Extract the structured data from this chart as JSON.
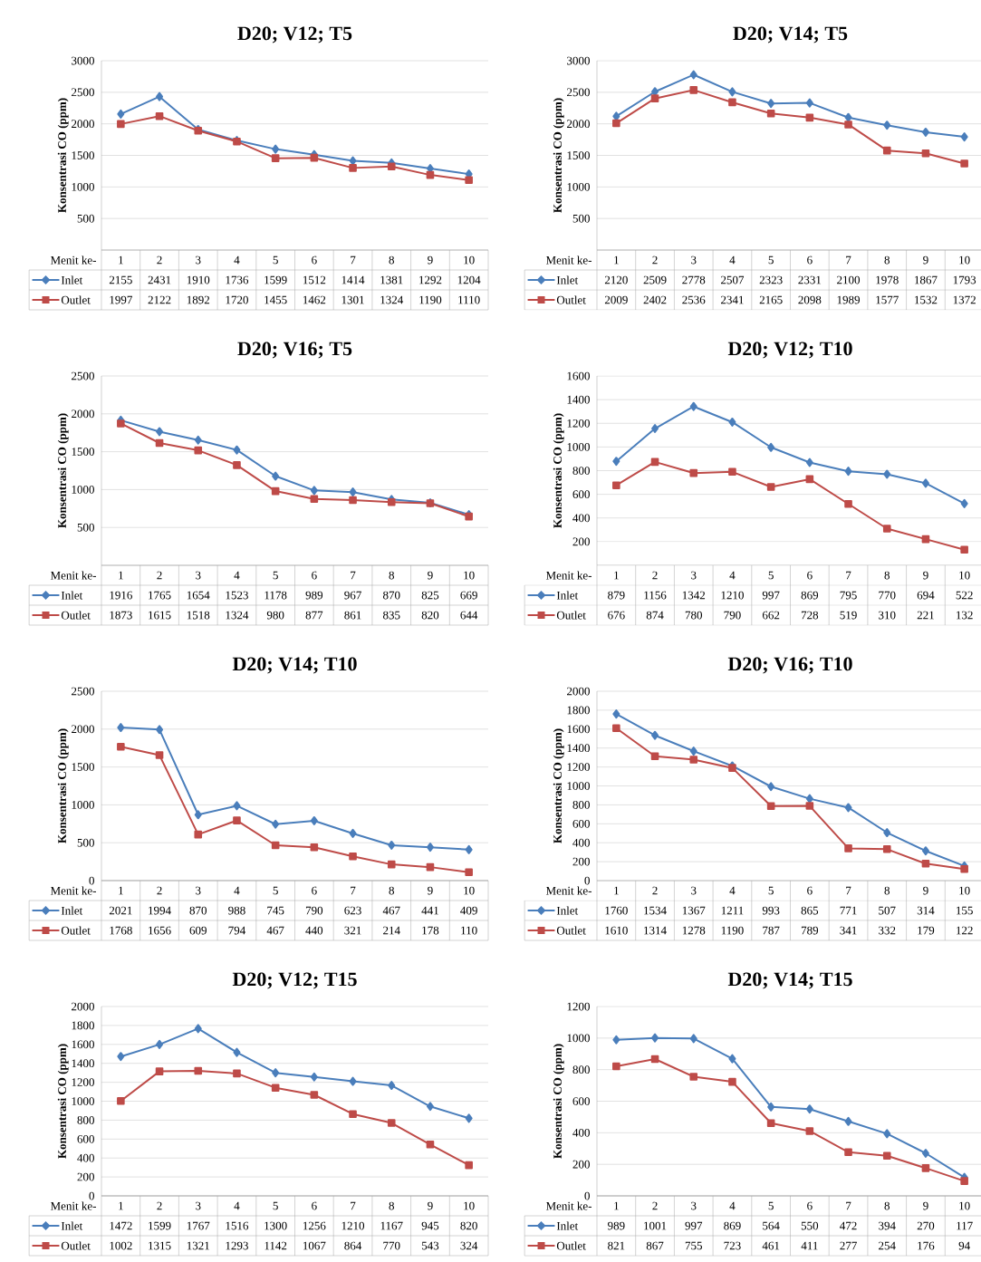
{
  "chart_data": [
    {
      "type": "line",
      "title": "D20; V12; T5",
      "xlabel": "Menit ke-",
      "ylabel": "Konsentrasi CO (ppm)",
      "categories": [
        "1",
        "2",
        "3",
        "4",
        "5",
        "6",
        "7",
        "8",
        "9",
        "10"
      ],
      "ylim": [
        0,
        3000
      ],
      "yticks": [
        500,
        1000,
        1500,
        2000,
        2500,
        3000
      ],
      "grid": "y",
      "legend": "bottom",
      "data_labels": true,
      "series": [
        {
          "name": "Inlet",
          "color": "#4a7ebb",
          "marker": "diamond",
          "values": [
            2155,
            2431,
            1910,
            1736,
            1599,
            1512,
            1414,
            1381,
            1292,
            1204
          ]
        },
        {
          "name": "Outlet",
          "color": "#be4b48",
          "marker": "square",
          "values": [
            1997,
            2122,
            1892,
            1720,
            1455,
            1462,
            1301,
            1324,
            1190,
            1110
          ]
        }
      ]
    },
    {
      "type": "line",
      "title": "D20; V14; T5",
      "xlabel": "Menit ke-",
      "ylabel": "Konsentrasi CO (ppm)",
      "categories": [
        "1",
        "2",
        "3",
        "4",
        "5",
        "6",
        "7",
        "8",
        "9",
        "10"
      ],
      "ylim": [
        0,
        3000
      ],
      "yticks": [
        500,
        1000,
        1500,
        2000,
        2500,
        3000
      ],
      "grid": "y",
      "legend": "bottom",
      "data_labels": true,
      "series": [
        {
          "name": "Inlet",
          "color": "#4a7ebb",
          "marker": "diamond",
          "values": [
            2120,
            2509,
            2778,
            2507,
            2323,
            2331,
            2100,
            1978,
            1867,
            1793
          ]
        },
        {
          "name": "Outlet",
          "color": "#be4b48",
          "marker": "square",
          "values": [
            2009,
            2402,
            2536,
            2341,
            2165,
            2098,
            1989,
            1577,
            1532,
            1372
          ]
        }
      ]
    },
    {
      "type": "line",
      "title": "D20; V16; T5",
      "xlabel": "Menit ke-",
      "ylabel": "Konsentrasi CO (ppm)",
      "categories": [
        "1",
        "2",
        "3",
        "4",
        "5",
        "6",
        "7",
        "8",
        "9",
        "10"
      ],
      "ylim": [
        0,
        2500
      ],
      "yticks": [
        500,
        1000,
        1500,
        2000,
        2500
      ],
      "grid": "y",
      "legend": "bottom",
      "data_labels": true,
      "series": [
        {
          "name": "Inlet",
          "color": "#4a7ebb",
          "marker": "diamond",
          "values": [
            1916,
            1765,
            1654,
            1523,
            1178,
            989,
            967,
            870,
            825,
            669
          ]
        },
        {
          "name": "Outlet",
          "color": "#be4b48",
          "marker": "square",
          "values": [
            1873,
            1615,
            1518,
            1324,
            980,
            877,
            861,
            835,
            820,
            644
          ]
        }
      ]
    },
    {
      "type": "line",
      "title": "D20; V12; T10",
      "xlabel": "Menit ke-",
      "ylabel": "Konsentrasi CO (ppm)",
      "categories": [
        "1",
        "2",
        "3",
        "4",
        "5",
        "6",
        "7",
        "8",
        "9",
        "10"
      ],
      "ylim": [
        0,
        1600
      ],
      "yticks": [
        200,
        400,
        600,
        800,
        1000,
        1200,
        1400,
        1600
      ],
      "grid": "y",
      "legend": "bottom",
      "data_labels": true,
      "series": [
        {
          "name": "Inlet",
          "color": "#4a7ebb",
          "marker": "diamond",
          "values": [
            879,
            1156,
            1342,
            1210,
            997,
            869,
            795,
            770,
            694,
            522
          ]
        },
        {
          "name": "Outlet",
          "color": "#be4b48",
          "marker": "square",
          "values": [
            676,
            874,
            780,
            790,
            662,
            728,
            519,
            310,
            221,
            132
          ]
        }
      ]
    },
    {
      "type": "line",
      "title": "D20; V14; T10",
      "xlabel": "Menit ke-",
      "ylabel": "Konsentrasi CO (ppm)",
      "categories": [
        "1",
        "2",
        "3",
        "4",
        "5",
        "6",
        "7",
        "8",
        "9",
        "10"
      ],
      "ylim": [
        0,
        2500
      ],
      "yticks": [
        0,
        500,
        1000,
        1500,
        2000,
        2500
      ],
      "grid": "y",
      "legend": "bottom",
      "data_labels": true,
      "series": [
        {
          "name": "Inlet",
          "color": "#4a7ebb",
          "marker": "diamond",
          "values": [
            2021,
            1994,
            870,
            988,
            745,
            790,
            623,
            467,
            441,
            409
          ]
        },
        {
          "name": "Outlet",
          "color": "#be4b48",
          "marker": "square",
          "values": [
            1768,
            1656,
            609,
            794,
            467,
            440,
            321,
            214,
            178,
            110
          ]
        }
      ]
    },
    {
      "type": "line",
      "title": "D20; V16; T10",
      "xlabel": "Menit ke-",
      "ylabel": "Konsentrasi CO (ppm)",
      "categories": [
        "1",
        "2",
        "3",
        "4",
        "5",
        "6",
        "7",
        "8",
        "9",
        "10"
      ],
      "ylim": [
        0,
        2000
      ],
      "yticks": [
        0,
        200,
        400,
        600,
        800,
        1000,
        1200,
        1400,
        1600,
        1800,
        2000
      ],
      "grid": "y",
      "legend": "bottom",
      "data_labels": true,
      "series": [
        {
          "name": "Inlet",
          "color": "#4a7ebb",
          "marker": "diamond",
          "values": [
            1760,
            1534,
            1367,
            1211,
            993,
            865,
            771,
            507,
            314,
            155
          ]
        },
        {
          "name": "Outlet",
          "color": "#be4b48",
          "marker": "square",
          "values": [
            1610,
            1314,
            1278,
            1190,
            787,
            789,
            341,
            332,
            179,
            122
          ]
        }
      ]
    },
    {
      "type": "line",
      "title": "D20; V12; T15",
      "xlabel": "Menit ke-",
      "ylabel": "Konsentrasi CO (ppm)",
      "categories": [
        "1",
        "2",
        "3",
        "4",
        "5",
        "6",
        "7",
        "8",
        "9",
        "10"
      ],
      "ylim": [
        0,
        2000
      ],
      "yticks": [
        0,
        200,
        400,
        600,
        800,
        1000,
        1200,
        1400,
        1600,
        1800,
        2000
      ],
      "grid": "y",
      "legend": "bottom",
      "data_labels": true,
      "series": [
        {
          "name": "Inlet",
          "color": "#4a7ebb",
          "marker": "diamond",
          "values": [
            1472,
            1599,
            1767,
            1516,
            1300,
            1256,
            1210,
            1167,
            945,
            820
          ]
        },
        {
          "name": "Outlet",
          "color": "#be4b48",
          "marker": "square",
          "values": [
            1002,
            1315,
            1321,
            1293,
            1142,
            1067,
            864,
            770,
            543,
            324
          ]
        }
      ]
    },
    {
      "type": "line",
      "title": "D20; V14; T15",
      "xlabel": "Menit ke-",
      "ylabel": "Konsentrasi CO (ppm)",
      "categories": [
        "1",
        "2",
        "3",
        "4",
        "5",
        "6",
        "7",
        "8",
        "9",
        "10"
      ],
      "ylim": [
        0,
        1200
      ],
      "yticks": [
        0,
        200,
        400,
        600,
        800,
        1000,
        1200
      ],
      "grid": "y",
      "legend": "bottom",
      "data_labels": true,
      "series": [
        {
          "name": "Inlet",
          "color": "#4a7ebb",
          "marker": "diamond",
          "values": [
            989,
            1001,
            997,
            869,
            564,
            550,
            472,
            394,
            270,
            117
          ]
        },
        {
          "name": "Outlet",
          "color": "#be4b48",
          "marker": "square",
          "values": [
            821,
            867,
            755,
            723,
            461,
            411,
            277,
            254,
            176,
            94
          ]
        }
      ]
    }
  ]
}
